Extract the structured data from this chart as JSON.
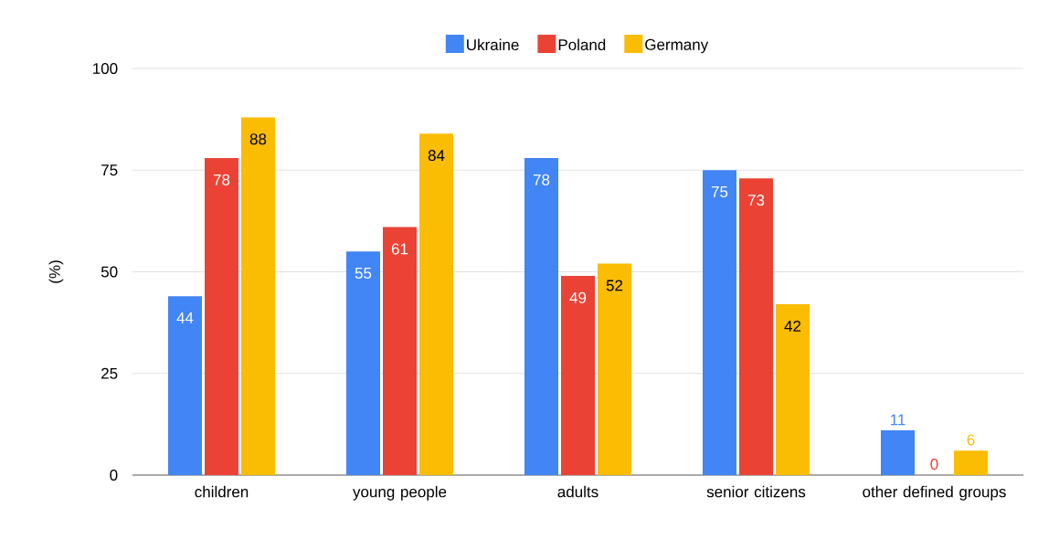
{
  "chart_data": {
    "type": "bar",
    "ylabel": "(%)",
    "categories": [
      "children",
      "young people",
      "adults",
      "senior citizens",
      "other defined groups"
    ],
    "series": [
      {
        "name": "Ukraine",
        "color": "#4285f4",
        "values": [
          44,
          55,
          78,
          75,
          11
        ]
      },
      {
        "name": "Poland",
        "color": "#ea4335",
        "values": [
          78,
          61,
          49,
          73,
          0
        ]
      },
      {
        "name": "Germany",
        "color": "#fbbc04",
        "values": [
          88,
          84,
          52,
          42,
          6
        ]
      }
    ],
    "ylim": [
      0,
      100
    ],
    "yticks": [
      0,
      25,
      50,
      75,
      100
    ],
    "grid": "y",
    "legend": "top",
    "data_labels": true
  }
}
